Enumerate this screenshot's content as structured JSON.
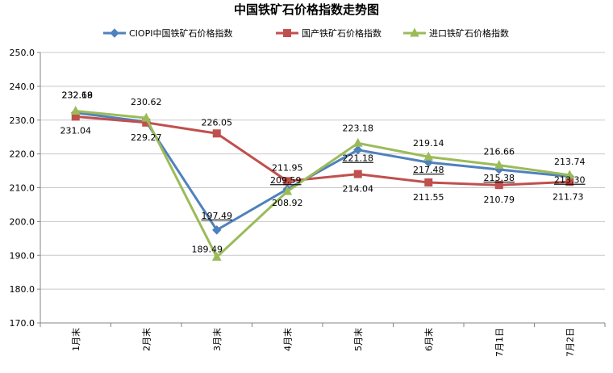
{
  "chart_data": {
    "type": "line",
    "title": "中国铁矿石价格指数走势图",
    "xlabel": "",
    "ylabel": "",
    "ylim": [
      170,
      250
    ],
    "y_ticks": [
      "170.0",
      "180.0",
      "190.0",
      "200.0",
      "210.0",
      "220.0",
      "230.0",
      "240.0",
      "250.0"
    ],
    "categories": [
      "1月末",
      "2月末",
      "3月末",
      "4月末",
      "5月末",
      "6月末",
      "7月1日",
      "7月2日"
    ],
    "grid": true,
    "legend_position": "top",
    "series": [
      {
        "name": "CIOPI中国铁矿石价格指数",
        "color": "#4f81bd",
        "marker": "diamond",
        "values": [
          232.18,
          229.5,
          197.49,
          209.59,
          221.18,
          217.48,
          215.38,
          213.3
        ],
        "labels": [
          "232.18",
          "",
          "197.49",
          "209.59",
          "221.18",
          "217.48",
          "215.38",
          "213.30"
        ]
      },
      {
        "name": "国产铁矿石价格指数",
        "color": "#c0504d",
        "marker": "square",
        "values": [
          231.04,
          229.27,
          226.05,
          211.95,
          214.04,
          211.55,
          210.79,
          211.73
        ],
        "labels": [
          "231.04",
          "229.27",
          "226.05",
          "211.95",
          "214.04",
          "211.55",
          "210.79",
          "211.73"
        ]
      },
      {
        "name": "进口铁矿石价格指数",
        "color": "#9bbb59",
        "marker": "triangle",
        "values": [
          232.69,
          230.62,
          189.49,
          208.92,
          223.18,
          219.14,
          216.66,
          213.74
        ],
        "labels": [
          "232.69",
          "230.62",
          "189.49",
          "208.92",
          "223.18",
          "219.14",
          "216.66",
          "213.74"
        ]
      }
    ]
  }
}
